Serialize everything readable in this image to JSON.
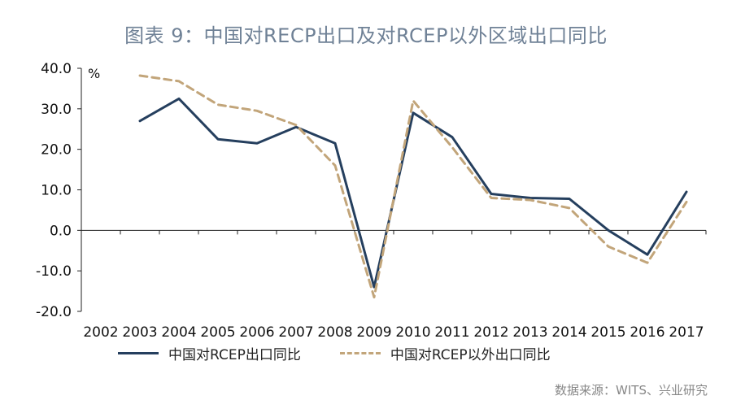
{
  "title": "图表 9：中国对RECP出口及对RCEP以外区域出口同比",
  "source": "数据来源：WITS、兴业研究",
  "chart_data": {
    "type": "line",
    "title": "图表 9：中国对RECP出口及对RCEP以外区域出口同比",
    "ylabel": "%",
    "xlabel": "",
    "ylim": [
      -20,
      40
    ],
    "yticks": [
      40,
      30,
      20,
      10,
      0,
      -10,
      -20
    ],
    "ytick_labels": [
      "40.0",
      "30.0",
      "20.0",
      "10.0",
      "0.0",
      "-10.0",
      "-20.0"
    ],
    "categories": [
      "2002",
      "2003",
      "2004",
      "2005",
      "2006",
      "2007",
      "2008",
      "2009",
      "2010",
      "2011",
      "2012",
      "2013",
      "2014",
      "2015",
      "2016",
      "2017"
    ],
    "legend_position": "bottom",
    "series": [
      {
        "name": "中国对RCEP出口同比",
        "color": "#253f5e",
        "style": "solid",
        "values": [
          null,
          27.0,
          32.5,
          22.5,
          21.5,
          25.5,
          21.5,
          -14.0,
          29.0,
          23.0,
          9.0,
          8.0,
          7.8,
          0.0,
          -6.0,
          9.5
        ]
      },
      {
        "name": "中国对RCEP以外出口同比",
        "color": "#c2a57a",
        "style": "dashed",
        "values": [
          null,
          38.2,
          36.8,
          31.0,
          29.5,
          26.0,
          16.0,
          -16.5,
          32.0,
          20.5,
          8.0,
          7.5,
          5.5,
          -4.0,
          -8.0,
          7.0
        ]
      }
    ]
  }
}
